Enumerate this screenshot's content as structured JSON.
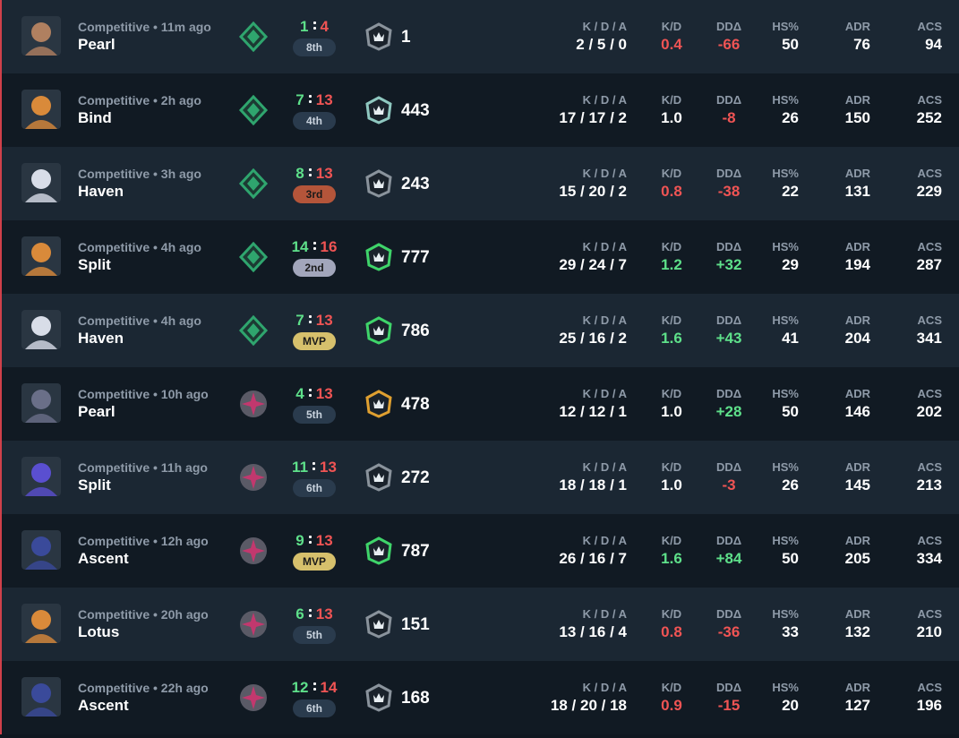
{
  "stat_headers": [
    "K / D / A",
    "K/D",
    "DDΔ",
    "HS%",
    "ADR",
    "ACS"
  ],
  "matches": [
    {
      "meta": "Competitive • 11m ago",
      "map": "Pearl",
      "won": 1,
      "lost": 4,
      "badge": "8th",
      "badge_color": "#2a3b4d",
      "badge_text_color": "#c9d3de",
      "rank_color": "#2fa56e",
      "level": 1,
      "level_color": "#8a939c",
      "avatar_color": "#b08060",
      "kda": "2 / 5 / 0",
      "kd": "0.4",
      "dd": "-66",
      "hs": 50,
      "adr": 76,
      "acs": 94
    },
    {
      "meta": "Competitive • 2h ago",
      "map": "Bind",
      "won": 7,
      "lost": 13,
      "badge": "4th",
      "badge_color": "#2a3b4d",
      "badge_text_color": "#c9d3de",
      "rank_color": "#2fa56e",
      "level": 443,
      "level_color": "#8fc8c0",
      "avatar_color": "#d98a3a",
      "kda": "17 / 17 / 2",
      "kd": "1.0",
      "dd": "-8",
      "hs": 26,
      "adr": 150,
      "acs": 252
    },
    {
      "meta": "Competitive • 3h ago",
      "map": "Haven",
      "won": 8,
      "lost": 13,
      "badge": "3rd",
      "badge_color": "#b4553a",
      "badge_text_color": "#1a1a1a",
      "rank_color": "#2fa56e",
      "level": 243,
      "level_color": "#8a939c",
      "avatar_color": "#d8dde8",
      "kda": "15 / 20 / 2",
      "kd": "0.8",
      "dd": "-38",
      "hs": 22,
      "adr": 131,
      "acs": 229
    },
    {
      "meta": "Competitive • 4h ago",
      "map": "Split",
      "won": 14,
      "lost": 16,
      "badge": "2nd",
      "badge_color": "#a2a6bb",
      "badge_text_color": "#1a1a1a",
      "rank_color": "#2fa56e",
      "level": 777,
      "level_color": "#3fd46a",
      "avatar_color": "#d98a3a",
      "kda": "29 / 24 / 7",
      "kd": "1.2",
      "dd": "+32",
      "hs": 29,
      "adr": 194,
      "acs": 287
    },
    {
      "meta": "Competitive • 4h ago",
      "map": "Haven",
      "won": 7,
      "lost": 13,
      "badge": "MVP",
      "badge_color": "#d6c06c",
      "badge_text_color": "#1a1a1a",
      "rank_color": "#2fa56e",
      "level": 786,
      "level_color": "#3fd46a",
      "avatar_color": "#d8dde8",
      "kda": "25 / 16 / 2",
      "kd": "1.6",
      "dd": "+43",
      "hs": 41,
      "adr": 204,
      "acs": 341
    },
    {
      "meta": "Competitive • 10h ago",
      "map": "Pearl",
      "won": 4,
      "lost": 13,
      "badge": "5th",
      "badge_color": "#2a3b4d",
      "badge_text_color": "#c9d3de",
      "rank_color": "#c2386e",
      "level": 478,
      "level_color": "#e0a030",
      "avatar_color": "#6a6f88",
      "kda": "12 / 12 / 1",
      "kd": "1.0",
      "dd": "+28",
      "hs": 50,
      "adr": 146,
      "acs": 202
    },
    {
      "meta": "Competitive • 11h ago",
      "map": "Split",
      "won": 11,
      "lost": 13,
      "badge": "6th",
      "badge_color": "#2a3b4d",
      "badge_text_color": "#c9d3de",
      "rank_color": "#c2386e",
      "level": 272,
      "level_color": "#8a939c",
      "avatar_color": "#5a4fd0",
      "kda": "18 / 18 / 1",
      "kd": "1.0",
      "dd": "-3",
      "hs": 26,
      "adr": 145,
      "acs": 213
    },
    {
      "meta": "Competitive • 12h ago",
      "map": "Ascent",
      "won": 9,
      "lost": 13,
      "badge": "MVP",
      "badge_color": "#d6c06c",
      "badge_text_color": "#1a1a1a",
      "rank_color": "#c2386e",
      "level": 787,
      "level_color": "#3fd46a",
      "avatar_color": "#3a4a9a",
      "kda": "26 / 16 / 7",
      "kd": "1.6",
      "dd": "+84",
      "hs": 50,
      "adr": 205,
      "acs": 334
    },
    {
      "meta": "Competitive • 20h ago",
      "map": "Lotus",
      "won": 6,
      "lost": 13,
      "badge": "5th",
      "badge_color": "#2a3b4d",
      "badge_text_color": "#c9d3de",
      "rank_color": "#c2386e",
      "level": 151,
      "level_color": "#8a939c",
      "avatar_color": "#d98a3a",
      "kda": "13 / 16 / 4",
      "kd": "0.8",
      "dd": "-36",
      "hs": 33,
      "adr": 132,
      "acs": 210
    },
    {
      "meta": "Competitive • 22h ago",
      "map": "Ascent",
      "won": 12,
      "lost": 14,
      "badge": "6th",
      "badge_color": "#2a3b4d",
      "badge_text_color": "#c9d3de",
      "rank_color": "#c2386e",
      "level": 168,
      "level_color": "#8a939c",
      "avatar_color": "#3a4a9a",
      "kda": "18 / 20 / 18",
      "kd": "0.9",
      "dd": "-15",
      "hs": 20,
      "adr": 127,
      "acs": 196
    }
  ]
}
